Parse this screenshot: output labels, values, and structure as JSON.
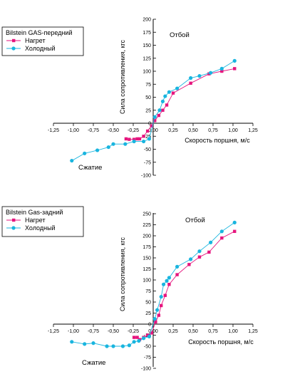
{
  "chart_data": [
    {
      "type": "line",
      "legend_title": "Bilstein GAS-передний",
      "xlabel": "Скорость поршня, м/с",
      "ylabel": "Сила сопротивления, кгс",
      "xlim": [
        -1.25,
        1.25
      ],
      "ylim": [
        -100,
        200
      ],
      "x_ticks": [
        "-1,25",
        "-1,00",
        "-0,75",
        "-0,50",
        "-0,25",
        "0,00",
        "0,25",
        "0,50",
        "0,75",
        "1,00",
        "1,25"
      ],
      "y_ticks": [
        "-100",
        "-75",
        "-50",
        "-25",
        "0",
        "25",
        "50",
        "75",
        "100",
        "125",
        "150",
        "175",
        "200"
      ],
      "annotations": {
        "rebound": "Отбой",
        "compression": "Сжатие"
      },
      "legend_position": "top-left",
      "series": [
        {
          "name": "Нагрет",
          "color": "#e6157e",
          "marker": "square",
          "x": [
            -0.34,
            -0.3,
            -0.24,
            -0.2,
            -0.17,
            -0.12,
            -0.07,
            -0.02,
            0.02,
            0.07,
            0.12,
            0.17,
            0.25,
            0.47,
            0.7,
            0.86,
            1.02
          ],
          "y": [
            -30,
            -31,
            -31,
            -30,
            -30,
            -25,
            -15,
            -5,
            5,
            15,
            25,
            35,
            58,
            77,
            95,
            100,
            105
          ]
        },
        {
          "name": "Холодный",
          "color": "#19b5df",
          "marker": "circle",
          "x": [
            -1.02,
            -0.86,
            -0.7,
            -0.56,
            -0.5,
            -0.35,
            -0.24,
            -0.12,
            -0.05,
            0.02,
            0.08,
            0.12,
            0.15,
            0.2,
            0.3,
            0.47,
            0.58,
            0.72,
            0.86,
            1.02
          ],
          "y": [
            -72,
            -58,
            -52,
            -46,
            -40,
            -40,
            -35,
            -35,
            -30,
            12,
            25,
            42,
            52,
            60,
            67,
            87,
            91,
            97,
            105,
            120
          ]
        }
      ]
    },
    {
      "type": "line",
      "legend_title": "Bilstein Gas-задний",
      "xlabel": "Скорость поршня, м/с",
      "ylabel": "Сила сопротивления, кгс",
      "xlim": [
        -1.25,
        1.25
      ],
      "ylim": [
        -100,
        250
      ],
      "x_ticks": [
        "-1,25",
        "-1,00",
        "-0,75",
        "-0,50",
        "-0,25",
        "0,00",
        "0,25",
        "0,50",
        "0,75",
        "1,00",
        "1,25"
      ],
      "y_ticks": [
        "-100",
        "-75",
        "-50",
        "-25",
        "0",
        "25",
        "50",
        "75",
        "100",
        "125",
        "150",
        "175",
        "200",
        "225",
        "250"
      ],
      "annotations": {
        "rebound": "Отбой",
        "compression": "Сжатие"
      },
      "legend_position": "top-left",
      "series": [
        {
          "name": "Нагрет",
          "color": "#e6157e",
          "marker": "square",
          "x": [
            -0.24,
            -0.2,
            -0.17,
            -0.12,
            -0.07,
            -0.02,
            0.03,
            0.07,
            0.1,
            0.15,
            0.2,
            0.3,
            0.45,
            0.58,
            0.7,
            0.86,
            1.02
          ],
          "y": [
            -30,
            -30,
            -35,
            -30,
            -25,
            -20,
            5,
            20,
            42,
            65,
            90,
            112,
            135,
            152,
            163,
            195,
            210
          ]
        },
        {
          "name": "Холодный",
          "color": "#19b5df",
          "marker": "circle",
          "x": [
            -1.02,
            -0.86,
            -0.75,
            -0.58,
            -0.5,
            -0.38,
            -0.3,
            -0.24,
            -0.18,
            -0.12,
            -0.05,
            0.02,
            0.05,
            0.1,
            0.13,
            0.17,
            0.2,
            0.3,
            0.47,
            0.58,
            0.72,
            0.86,
            1.02
          ],
          "y": [
            -40,
            -45,
            -43,
            -50,
            -50,
            -50,
            -48,
            -40,
            -38,
            -32,
            -28,
            12,
            32,
            62,
            90,
            98,
            105,
            130,
            147,
            165,
            185,
            210,
            230
          ]
        }
      ]
    }
  ]
}
